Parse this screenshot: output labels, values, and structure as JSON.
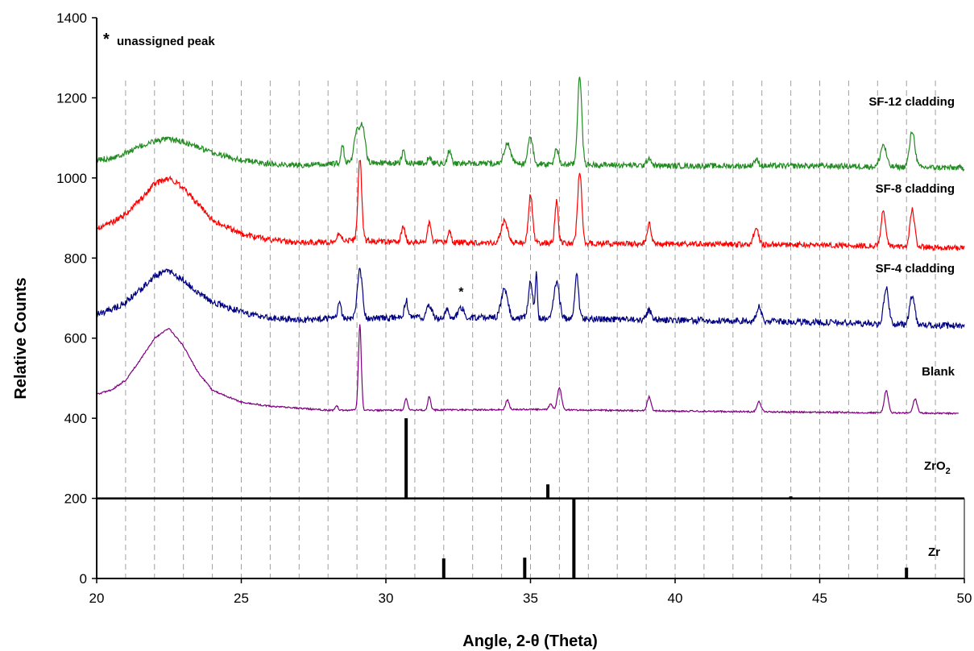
{
  "chart_data": {
    "type": "line",
    "title": "",
    "xlabel": "Angle, 2-θ (Theta)",
    "ylabel": "Relative Counts",
    "xlim": [
      20,
      50
    ],
    "ylim": [
      0,
      1400
    ],
    "xticks": [
      20,
      25,
      30,
      35,
      40,
      45,
      50
    ],
    "yticks": [
      0,
      200,
      400,
      600,
      800,
      1000,
      1200,
      1400
    ],
    "grid": "vertical dashed lines every 1 degree",
    "annotation_note": "unassigned peak",
    "annotations": [
      {
        "text": "*",
        "x": 32.6,
        "y": 705,
        "meaning": "unassigned peak"
      }
    ],
    "series": [
      {
        "name": "SF-12 cladding",
        "color": "#228b22",
        "baseline": 1030,
        "noise": 7,
        "end_x": 50,
        "hump": {
          "center": 22.4,
          "width": 1.3,
          "height": 65
        },
        "points": [
          [
            20,
            1045
          ],
          [
            20.5,
            1050
          ],
          [
            21,
            1062
          ],
          [
            21.5,
            1078
          ],
          [
            22,
            1092
          ],
          [
            22.5,
            1097
          ],
          [
            23,
            1090
          ],
          [
            23.5,
            1077
          ],
          [
            24,
            1062
          ],
          [
            25,
            1045
          ],
          [
            26,
            1035
          ],
          [
            27,
            1032
          ],
          [
            28,
            1034
          ],
          [
            29,
            1040
          ],
          [
            30,
            1037
          ],
          [
            35,
            1035
          ],
          [
            40,
            1030
          ],
          [
            45,
            1030
          ],
          [
            50,
            1025
          ]
        ],
        "peaks": [
          [
            28.5,
            45,
            0.07
          ],
          [
            29.0,
            80,
            0.13
          ],
          [
            29.2,
            85,
            0.12
          ],
          [
            30.6,
            30,
            0.08
          ],
          [
            31.5,
            18,
            0.07
          ],
          [
            32.2,
            35,
            0.08
          ],
          [
            34.2,
            50,
            0.16
          ],
          [
            35.0,
            70,
            0.11
          ],
          [
            35.9,
            40,
            0.09
          ],
          [
            36.7,
            225,
            0.1
          ],
          [
            39.1,
            20,
            0.1
          ],
          [
            42.8,
            15,
            0.12
          ],
          [
            47.2,
            55,
            0.14
          ],
          [
            48.2,
            90,
            0.13
          ]
        ]
      },
      {
        "name": "SF-8 cladding",
        "color": "#ff0000",
        "baseline": 830,
        "noise": 7,
        "end_x": 50,
        "hump": {
          "center": 22.4,
          "width": 1.2,
          "height": 120
        },
        "points": [
          [
            20,
            875
          ],
          [
            20.5,
            888
          ],
          [
            21,
            910
          ],
          [
            21.5,
            945
          ],
          [
            22,
            985
          ],
          [
            22.5,
            1000
          ],
          [
            23,
            975
          ],
          [
            23.5,
            935
          ],
          [
            24,
            895
          ],
          [
            25,
            860
          ],
          [
            26,
            845
          ],
          [
            27,
            838
          ],
          [
            28,
            840
          ],
          [
            29,
            845
          ],
          [
            30,
            840
          ],
          [
            35,
            838
          ],
          [
            40,
            835
          ],
          [
            45,
            833
          ],
          [
            50,
            825
          ]
        ],
        "peaks": [
          [
            28.4,
            20,
            0.1
          ],
          [
            29.1,
            205,
            0.09
          ],
          [
            30.6,
            40,
            0.09
          ],
          [
            31.5,
            50,
            0.08
          ],
          [
            32.2,
            30,
            0.07
          ],
          [
            34.1,
            55,
            0.15
          ],
          [
            35.0,
            120,
            0.1
          ],
          [
            35.9,
            105,
            0.08
          ],
          [
            36.7,
            180,
            0.1
          ],
          [
            39.1,
            50,
            0.09
          ],
          [
            42.8,
            40,
            0.12
          ],
          [
            47.2,
            90,
            0.11
          ],
          [
            48.2,
            95,
            0.11
          ]
        ]
      },
      {
        "name": "SF-4 cladding",
        "color": "#000080",
        "baseline": 640,
        "noise": 8,
        "end_x": 50,
        "hump": {
          "center": 22.4,
          "width": 1.2,
          "height": 110
        },
        "points": [
          [
            20,
            660
          ],
          [
            20.5,
            670
          ],
          [
            21,
            690
          ],
          [
            21.5,
            720
          ],
          [
            22,
            755
          ],
          [
            22.5,
            768
          ],
          [
            23,
            745
          ],
          [
            23.5,
            715
          ],
          [
            24,
            690
          ],
          [
            25,
            665
          ],
          [
            26,
            650
          ],
          [
            27,
            645
          ],
          [
            28,
            648
          ],
          [
            29,
            650
          ],
          [
            30,
            650
          ],
          [
            33,
            652
          ],
          [
            35,
            650
          ],
          [
            40,
            645
          ],
          [
            45,
            640
          ],
          [
            50,
            630
          ]
        ],
        "peaks": [
          [
            28.4,
            40,
            0.08
          ],
          [
            29.1,
            120,
            0.12
          ],
          [
            30.7,
            45,
            0.08
          ],
          [
            31.5,
            30,
            0.12
          ],
          [
            32.1,
            20,
            0.08
          ],
          [
            32.6,
            25,
            0.12
          ],
          [
            34.1,
            70,
            0.16
          ],
          [
            35.0,
            95,
            0.1
          ],
          [
            35.2,
            115,
            0.05
          ],
          [
            35.9,
            90,
            0.14
          ],
          [
            36.6,
            110,
            0.09
          ],
          [
            39.1,
            25,
            0.1
          ],
          [
            42.9,
            35,
            0.11
          ],
          [
            47.3,
            90,
            0.12
          ],
          [
            48.2,
            75,
            0.12
          ]
        ]
      },
      {
        "name": "Blank",
        "color": "#800080",
        "baseline": 418,
        "noise": 2,
        "end_x": 49.8,
        "hump": {
          "center": 22.3,
          "width": 1.25,
          "height": 205
        },
        "points": [
          [
            20,
            460
          ],
          [
            20.5,
            470
          ],
          [
            21,
            495
          ],
          [
            21.5,
            545
          ],
          [
            22,
            600
          ],
          [
            22.5,
            625
          ],
          [
            23,
            580
          ],
          [
            23.5,
            515
          ],
          [
            24,
            470
          ],
          [
            25,
            440
          ],
          [
            26,
            430
          ],
          [
            27,
            425
          ],
          [
            28,
            420
          ],
          [
            29,
            420
          ],
          [
            30,
            420
          ],
          [
            35,
            422
          ],
          [
            40,
            418
          ],
          [
            45,
            415
          ],
          [
            49.8,
            412
          ]
        ],
        "peaks": [
          [
            28.3,
            12,
            0.06
          ],
          [
            29.1,
            215,
            0.07
          ],
          [
            30.7,
            30,
            0.07
          ],
          [
            31.5,
            35,
            0.07
          ],
          [
            34.2,
            25,
            0.08
          ],
          [
            35.7,
            15,
            0.08
          ],
          [
            36.0,
            55,
            0.1
          ],
          [
            39.1,
            35,
            0.09
          ],
          [
            42.9,
            25,
            0.1
          ],
          [
            47.3,
            55,
            0.1
          ],
          [
            48.3,
            35,
            0.1
          ]
        ]
      }
    ],
    "reference_patterns": [
      {
        "name": "ZrO2",
        "label_main": "ZrO",
        "label_sub": "2",
        "base": 200,
        "sticks": [
          [
            30.7,
            400
          ],
          [
            35.6,
            235
          ],
          [
            44.0,
            205
          ]
        ]
      },
      {
        "name": "Zr",
        "label_main": "Zr",
        "label_sub": "",
        "base": 0,
        "sticks": [
          [
            32.0,
            50
          ],
          [
            34.8,
            52
          ],
          [
            36.5,
            200
          ],
          [
            48.0,
            27
          ]
        ]
      }
    ],
    "separator_y": 200
  }
}
